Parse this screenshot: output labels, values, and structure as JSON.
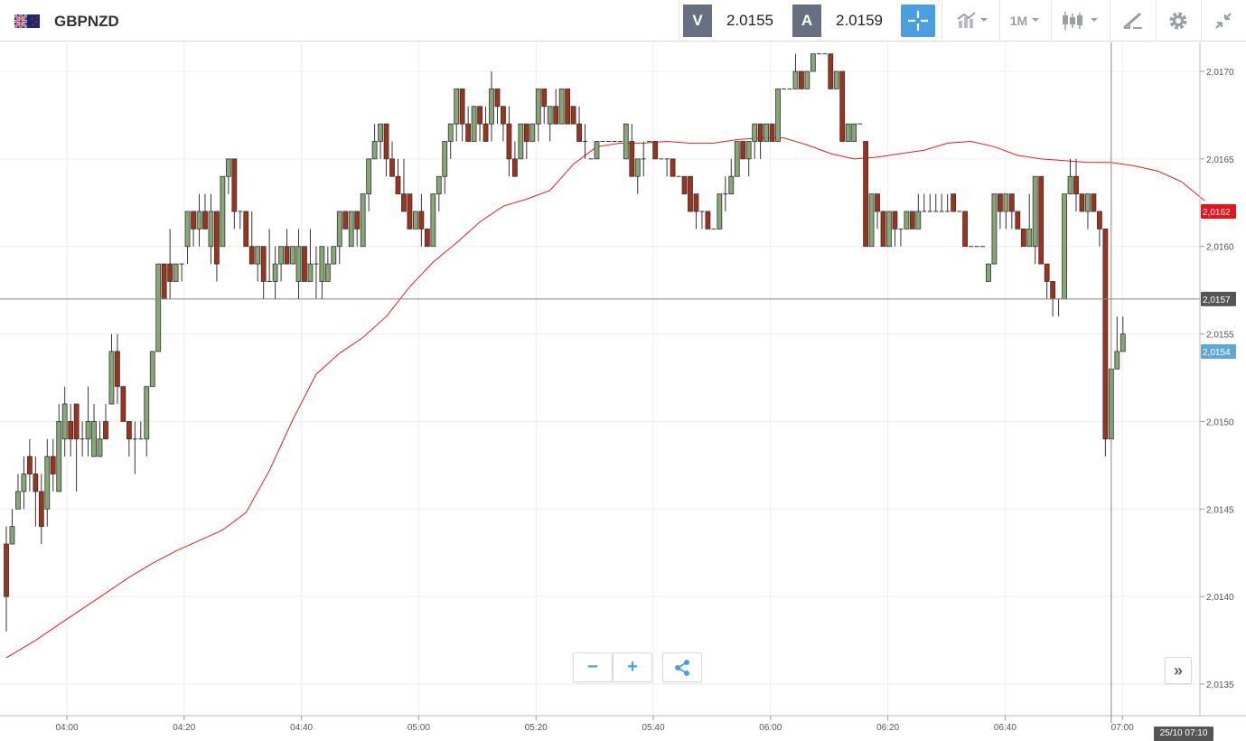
{
  "header": {
    "symbol": "GBPNZD",
    "bid_tag": "V",
    "bid_value": "2.0155",
    "ask_tag": "A",
    "ask_value": "2.0159",
    "timeframe": "1M",
    "icons": [
      "uk-nz-flag-icon",
      "crosshair-icon",
      "chart-type-icon",
      "candlestick-icon",
      "drawing-tool-icon",
      "gear-icon",
      "collapse-icon"
    ]
  },
  "controls": {
    "zoom_out": "−",
    "zoom_in": "+",
    "share_icon": "share-icon",
    "scroll_right": "»",
    "time_badge": "25/10 07:10"
  },
  "colors": {
    "bull": "#86a874",
    "bear": "#a0311b",
    "ma": "#e02020",
    "accent": "#4a9fe0",
    "ma_badge": "#e8141c",
    "crosshair_badge": "#555555",
    "price_badge": "#5fa8d3"
  },
  "chart_data": {
    "type": "candlestick",
    "timeframe": "1M",
    "x_ticks": [
      "04:00",
      "04:20",
      "04:40",
      "05:00",
      "05:20",
      "05:40",
      "06:00",
      "06:20",
      "06:40",
      "07:00"
    ],
    "y_ticks": [
      "2,0135",
      "2,0140",
      "2,0145",
      "2,0150",
      "2,0155",
      "2,0160",
      "2,0165",
      "2,0170"
    ],
    "ylim": [
      2.01335,
      2.01715
    ],
    "grid": true,
    "crosshair_price": "2,0157",
    "ma_label": "2,0162",
    "last_price_label": "2,0154",
    "ma": [
      [
        0,
        2.01365
      ],
      [
        5,
        2.01375
      ],
      [
        9,
        2.01384
      ],
      [
        13,
        2.01393
      ],
      [
        17,
        2.01402
      ],
      [
        21,
        2.01411
      ],
      [
        25,
        2.01419
      ],
      [
        29,
        2.01426
      ],
      [
        33,
        2.01432
      ],
      [
        37,
        2.01438
      ],
      [
        41,
        2.01448
      ],
      [
        45,
        2.01472
      ],
      [
        49,
        2.01501
      ],
      [
        53,
        2.01527
      ],
      [
        57,
        2.01539
      ],
      [
        61,
        2.01548
      ],
      [
        65,
        2.0156
      ],
      [
        69,
        2.01577
      ],
      [
        73,
        2.01591
      ],
      [
        77,
        2.01602
      ],
      [
        81,
        2.01614
      ],
      [
        85,
        2.01623
      ],
      [
        89,
        2.01627
      ],
      [
        93,
        2.01632
      ],
      [
        97,
        2.01647
      ],
      [
        101,
        2.01657
      ],
      [
        105,
        2.01659
      ],
      [
        109,
        2.01659
      ],
      [
        113,
        2.0166
      ],
      [
        117,
        2.01659
      ],
      [
        121,
        2.01659
      ],
      [
        125,
        2.01661
      ],
      [
        129,
        2.01662
      ],
      [
        133,
        2.01662
      ],
      [
        137,
        2.01658
      ],
      [
        141,
        2.01653
      ],
      [
        145,
        2.0165
      ],
      [
        149,
        2.01651
      ],
      [
        153,
        2.01653
      ],
      [
        157,
        2.01655
      ],
      [
        161,
        2.01659
      ],
      [
        165,
        2.0166
      ],
      [
        169,
        2.01657
      ],
      [
        173,
        2.01652
      ],
      [
        177,
        2.0165
      ],
      [
        181,
        2.01649
      ],
      [
        185,
        2.01648
      ],
      [
        189,
        2.01648
      ],
      [
        193,
        2.01646
      ],
      [
        197,
        2.01643
      ],
      [
        201,
        2.01637
      ],
      [
        205,
        2.01626
      ]
    ],
    "candles": [
      [
        2.0143,
        2.014,
        2.0144,
        2.0138
      ],
      [
        2.0143,
        2.0144,
        2.0145,
        2.0143
      ],
      [
        2.0145,
        2.0146,
        2.0147,
        2.0145
      ],
      [
        2.0146,
        2.0147,
        2.0148,
        2.0145
      ],
      [
        2.0148,
        2.0147,
        2.0149,
        2.0146
      ],
      [
        2.0147,
        2.0146,
        2.0148,
        2.0144
      ],
      [
        2.0146,
        2.0144,
        2.0147,
        2.0143
      ],
      [
        2.0145,
        2.0148,
        2.0149,
        2.0144
      ],
      [
        2.0148,
        2.0147,
        2.0149,
        2.0146
      ],
      [
        2.0146,
        2.015,
        2.0151,
        2.0146
      ],
      [
        2.0149,
        2.0151,
        2.0152,
        2.0148
      ],
      [
        2.015,
        2.0149,
        2.0151,
        2.0148
      ],
      [
        2.0151,
        2.0149,
        2.0151,
        2.0146
      ],
      [
        2.0149,
        2.0149,
        2.015,
        2.0148
      ],
      [
        2.0149,
        2.015,
        2.0152,
        2.0148
      ],
      [
        2.0148,
        2.015,
        2.0151,
        2.0148
      ],
      [
        2.0148,
        2.0149,
        2.015,
        2.0148
      ],
      [
        2.015,
        2.0149,
        2.0151,
        2.0149
      ],
      [
        2.0151,
        2.0154,
        2.0155,
        2.0151
      ],
      [
        2.0154,
        2.0152,
        2.0155,
        2.0151
      ],
      [
        2.0152,
        2.015,
        2.0152,
        2.015
      ],
      [
        2.015,
        2.0149,
        2.015,
        2.0148
      ],
      [
        2.0149,
        2.0149,
        2.015,
        2.0147
      ],
      [
        2.0149,
        2.0149,
        2.015,
        2.0149
      ],
      [
        2.0149,
        2.0152,
        2.0152,
        2.0148
      ],
      [
        2.0152,
        2.0154,
        2.0154,
        2.0152
      ],
      [
        2.0154,
        2.0159,
        2.0159,
        2.0154
      ],
      [
        2.0159,
        2.0157,
        2.0159,
        2.0157
      ],
      [
        2.0159,
        2.0158,
        2.0161,
        2.0157
      ],
      [
        2.0158,
        2.0159,
        2.0159,
        2.0158
      ],
      [
        2.0159,
        2.0159,
        2.0159,
        2.0158
      ],
      [
        2.016,
        2.0162,
        2.0162,
        2.0159
      ],
      [
        2.0162,
        2.0161,
        2.0162,
        2.016
      ],
      [
        2.0161,
        2.0162,
        2.0163,
        2.016
      ],
      [
        2.0162,
        2.0161,
        2.0163,
        2.0161
      ],
      [
        2.016,
        2.0162,
        2.0163,
        2.0159
      ],
      [
        2.0162,
        2.0159,
        2.0162,
        2.0158
      ],
      [
        2.016,
        2.0164,
        2.0164,
        2.016
      ],
      [
        2.0164,
        2.0165,
        2.0165,
        2.0163
      ],
      [
        2.0165,
        2.0162,
        2.0165,
        2.0161
      ],
      [
        2.0162,
        2.0162,
        2.0162,
        2.0161
      ],
      [
        2.0162,
        2.016,
        2.0162,
        2.016
      ],
      [
        2.016,
        2.0159,
        2.0162,
        2.0159
      ],
      [
        2.0159,
        2.016,
        2.016,
        2.0158
      ],
      [
        2.016,
        2.0158,
        2.016,
        2.0157
      ],
      [
        2.0158,
        2.0158,
        2.0161,
        2.0158
      ],
      [
        2.0158,
        2.0159,
        2.016,
        2.0157
      ],
      [
        2.0159,
        2.016,
        2.016,
        2.0158
      ],
      [
        2.016,
        2.0159,
        2.0161,
        2.0159
      ],
      [
        2.0159,
        2.016,
        2.016,
        2.0159
      ],
      [
        2.0158,
        2.016,
        2.0161,
        2.0157
      ],
      [
        2.016,
        2.0158,
        2.016,
        2.0158
      ],
      [
        2.0158,
        2.0159,
        2.0161,
        2.0158
      ],
      [
        2.0159,
        2.0159,
        2.016,
        2.0157
      ],
      [
        2.0158,
        2.016,
        2.016,
        2.0157
      ],
      [
        2.0158,
        2.0159,
        2.016,
        2.0158
      ],
      [
        2.0159,
        2.016,
        2.016,
        2.0159
      ],
      [
        2.016,
        2.0162,
        2.0162,
        2.0159
      ],
      [
        2.0162,
        2.0161,
        2.0162,
        2.0161
      ],
      [
        2.016,
        2.0162,
        2.0162,
        2.016
      ],
      [
        2.0162,
        2.0161,
        2.0162,
        2.016
      ],
      [
        2.016,
        2.0163,
        2.0163,
        2.016
      ],
      [
        2.0163,
        2.0165,
        2.0165,
        2.0162
      ],
      [
        2.0165,
        2.0166,
        2.0167,
        2.0165
      ],
      [
        2.0166,
        2.0167,
        2.0167,
        2.0165
      ],
      [
        2.0167,
        2.0165,
        2.0167,
        2.0164
      ],
      [
        2.0165,
        2.0164,
        2.0166,
        2.0164
      ],
      [
        2.0164,
        2.0163,
        2.0165,
        2.0163
      ],
      [
        2.0163,
        2.0162,
        2.0165,
        2.0163
      ],
      [
        2.0163,
        2.0161,
        2.0163,
        2.0161
      ],
      [
        2.0161,
        2.0162,
        2.0162,
        2.0161
      ],
      [
        2.0162,
        2.0161,
        2.0163,
        2.016
      ],
      [
        2.0161,
        2.016,
        2.0161,
        2.016
      ],
      [
        2.016,
        2.0163,
        2.0163,
        2.016
      ],
      [
        2.0163,
        2.0164,
        2.0164,
        2.0162
      ],
      [
        2.0164,
        2.0166,
        2.0166,
        2.0163
      ],
      [
        2.0166,
        2.0167,
        2.0167,
        2.0165
      ],
      [
        2.0167,
        2.0169,
        2.0169,
        2.0166
      ],
      [
        2.0169,
        2.0167,
        2.0169,
        2.0166
      ],
      [
        2.0167,
        2.0166,
        2.0168,
        2.0166
      ],
      [
        2.0166,
        2.0168,
        2.0168,
        2.0166
      ],
      [
        2.0168,
        2.0167,
        2.0168,
        2.0166
      ],
      [
        2.0167,
        2.0166,
        2.0168,
        2.0166
      ],
      [
        2.0167,
        2.0169,
        2.017,
        2.0166
      ],
      [
        2.0169,
        2.0168,
        2.0169,
        2.0167
      ],
      [
        2.0168,
        2.0167,
        2.0168,
        2.0166
      ],
      [
        2.0167,
        2.0165,
        2.0168,
        2.0164
      ],
      [
        2.0165,
        2.0164,
        2.0166,
        2.0164
      ],
      [
        2.0165,
        2.0167,
        2.0167,
        2.0165
      ],
      [
        2.0167,
        2.0166,
        2.0167,
        2.0165
      ],
      [
        2.0166,
        2.0167,
        2.0167,
        2.0166
      ],
      [
        2.0167,
        2.0169,
        2.0169,
        2.0166
      ],
      [
        2.0169,
        2.0168,
        2.0169,
        2.0167
      ],
      [
        2.0167,
        2.0168,
        2.0168,
        2.0166
      ],
      [
        2.0168,
        2.0167,
        2.0169,
        2.0167
      ],
      [
        2.0167,
        2.0169,
        2.0169,
        2.0167
      ],
      [
        2.0169,
        2.0167,
        2.0169,
        2.0167
      ],
      [
        2.0168,
        2.0167,
        2.0168,
        2.0167
      ],
      [
        2.0167,
        2.0166,
        2.0168,
        2.0166
      ],
      [
        2.0166,
        2.0166,
        2.0167,
        2.0165
      ],
      [
        2.0165,
        2.0165,
        2.0165,
        2.0165
      ],
      [
        2.0165,
        2.0166,
        2.0166,
        2.0165
      ],
      [
        2.0166,
        2.0166,
        2.0166,
        2.0166
      ],
      [
        2.0166,
        2.0166,
        2.0166,
        2.0166
      ],
      [
        2.0166,
        2.0166,
        2.0166,
        2.0166
      ],
      [
        2.0166,
        2.0166,
        2.0166,
        2.0166
      ],
      [
        2.0165,
        2.0167,
        2.0167,
        2.0165
      ],
      [
        2.0166,
        2.0164,
        2.0167,
        2.0164
      ],
      [
        2.0164,
        2.0165,
        2.0165,
        2.0163
      ],
      [
        2.0165,
        2.0165,
        2.0166,
        2.0164
      ],
      [
        2.0166,
        2.0166,
        2.0166,
        2.0166
      ],
      [
        2.0166,
        2.0165,
        2.0166,
        2.0165
      ],
      [
        2.0165,
        2.0165,
        2.0165,
        2.0165
      ],
      [
        2.0165,
        2.0165,
        2.0165,
        2.0164
      ],
      [
        2.0165,
        2.0164,
        2.0165,
        2.0164
      ],
      [
        2.0164,
        2.0164,
        2.0164,
        2.0164
      ],
      [
        2.0164,
        2.0163,
        2.0164,
        2.0163
      ],
      [
        2.0164,
        2.0162,
        2.0164,
        2.0162
      ],
      [
        2.0163,
        2.0162,
        2.0163,
        2.0161
      ],
      [
        2.0162,
        2.0162,
        2.0162,
        2.0161
      ],
      [
        2.0162,
        2.0161,
        2.0162,
        2.0161
      ],
      [
        2.0161,
        2.0161,
        2.0161,
        2.0161
      ],
      [
        2.0161,
        2.0163,
        2.0163,
        2.0161
      ],
      [
        2.0163,
        2.0163,
        2.0164,
        2.0162
      ],
      [
        2.0163,
        2.0164,
        2.0165,
        2.0163
      ],
      [
        2.0164,
        2.0166,
        2.0166,
        2.0164
      ],
      [
        2.0166,
        2.0165,
        2.0166,
        2.0165
      ],
      [
        2.0165,
        2.0166,
        2.0166,
        2.0164
      ],
      [
        2.0166,
        2.0167,
        2.0167,
        2.0165
      ],
      [
        2.0167,
        2.0166,
        2.0167,
        2.0165
      ],
      [
        2.0166,
        2.0167,
        2.0167,
        2.0166
      ],
      [
        2.0167,
        2.0166,
        2.0167,
        2.0166
      ],
      [
        2.0166,
        2.0169,
        2.0169,
        2.0166
      ],
      [
        2.0169,
        2.0169,
        2.0169,
        2.0169
      ],
      [
        2.0169,
        2.0169,
        2.0169,
        2.0169
      ],
      [
        2.0169,
        2.017,
        2.0171,
        2.0169
      ],
      [
        2.017,
        2.0169,
        2.017,
        2.0169
      ],
      [
        2.0169,
        2.017,
        2.017,
        2.0169
      ],
      [
        2.017,
        2.0171,
        2.0171,
        2.017
      ],
      [
        2.0171,
        2.0171,
        2.0171,
        2.0171
      ],
      [
        2.0171,
        2.0171,
        2.0171,
        2.0171
      ],
      [
        2.0171,
        2.0169,
        2.0171,
        2.0169
      ],
      [
        2.0169,
        2.017,
        2.017,
        2.0169
      ],
      [
        2.017,
        2.0166,
        2.017,
        2.0166
      ],
      [
        2.0166,
        2.0167,
        2.0167,
        2.0166
      ],
      [
        2.0166,
        2.0167,
        2.0167,
        2.0166
      ],
      [
        2.0167,
        2.0167,
        2.0167,
        2.0167
      ],
      [
        2.0166,
        2.016,
        2.0166,
        2.016
      ],
      [
        2.016,
        2.0163,
        2.0163,
        2.016
      ],
      [
        2.0163,
        2.0162,
        2.0163,
        2.0161
      ],
      [
        2.0162,
        2.016,
        2.0162,
        2.016
      ],
      [
        2.016,
        2.0162,
        2.0162,
        2.016
      ],
      [
        2.0162,
        2.0161,
        2.0162,
        2.016
      ],
      [
        2.0161,
        2.0161,
        2.0161,
        2.016
      ],
      [
        2.0161,
        2.0162,
        2.0162,
        2.0161
      ],
      [
        2.0162,
        2.0161,
        2.0162,
        2.0161
      ],
      [
        2.0161,
        2.0162,
        2.0163,
        2.0161
      ],
      [
        2.0162,
        2.0162,
        2.0163,
        2.0162
      ],
      [
        2.0162,
        2.0162,
        2.0163,
        2.0162
      ],
      [
        2.0162,
        2.0162,
        2.0163,
        2.0162
      ],
      [
        2.0162,
        2.0162,
        2.0163,
        2.0162
      ],
      [
        2.0162,
        2.0162,
        2.0163,
        2.0162
      ],
      [
        2.0163,
        2.0162,
        2.0163,
        2.0162
      ],
      [
        2.0162,
        2.0162,
        2.0162,
        2.0162
      ],
      [
        2.0162,
        2.016,
        2.0162,
        2.016
      ],
      [
        2.016,
        2.016,
        2.016,
        2.016
      ],
      [
        2.016,
        2.016,
        2.016,
        2.016
      ],
      [
        2.016,
        2.016,
        2.016,
        2.016
      ],
      [
        2.0158,
        2.0159,
        2.0159,
        2.0158
      ],
      [
        2.0159,
        2.0163,
        2.0163,
        2.0159
      ],
      [
        2.0163,
        2.0162,
        2.0163,
        2.0161
      ],
      [
        2.0162,
        2.0163,
        2.0163,
        2.0161
      ],
      [
        2.0163,
        2.0162,
        2.0163,
        2.0161
      ],
      [
        2.0162,
        2.0161,
        2.0162,
        2.0161
      ],
      [
        2.0161,
        2.016,
        2.0161,
        2.016
      ],
      [
        2.016,
        2.0161,
        2.0163,
        2.016
      ],
      [
        2.016,
        2.0164,
        2.0164,
        2.0159
      ],
      [
        2.0164,
        2.0159,
        2.0164,
        2.0159
      ],
      [
        2.0159,
        2.0158,
        2.0159,
        2.0157
      ],
      [
        2.0158,
        2.0157,
        2.0158,
        2.0156
      ],
      [
        2.0157,
        2.0157,
        2.0157,
        2.0156
      ],
      [
        2.0157,
        2.0163,
        2.0163,
        2.0157
      ],
      [
        2.0163,
        2.0164,
        2.0165,
        2.0163
      ],
      [
        2.0164,
        2.0163,
        2.0165,
        2.0162
      ],
      [
        2.0163,
        2.0162,
        2.0163,
        2.0162
      ],
      [
        2.0162,
        2.0163,
        2.0163,
        2.0161
      ],
      [
        2.0163,
        2.0162,
        2.0163,
        2.0162
      ],
      [
        2.0162,
        2.0161,
        2.0162,
        2.016
      ],
      [
        2.0161,
        2.0149,
        2.0161,
        2.0148
      ],
      [
        2.0149,
        2.0153,
        2.0153,
        2.0149
      ],
      [
        2.0153,
        2.0154,
        2.0156,
        2.0153
      ],
      [
        2.0154,
        2.0155,
        2.0156,
        2.0154
      ]
    ]
  }
}
